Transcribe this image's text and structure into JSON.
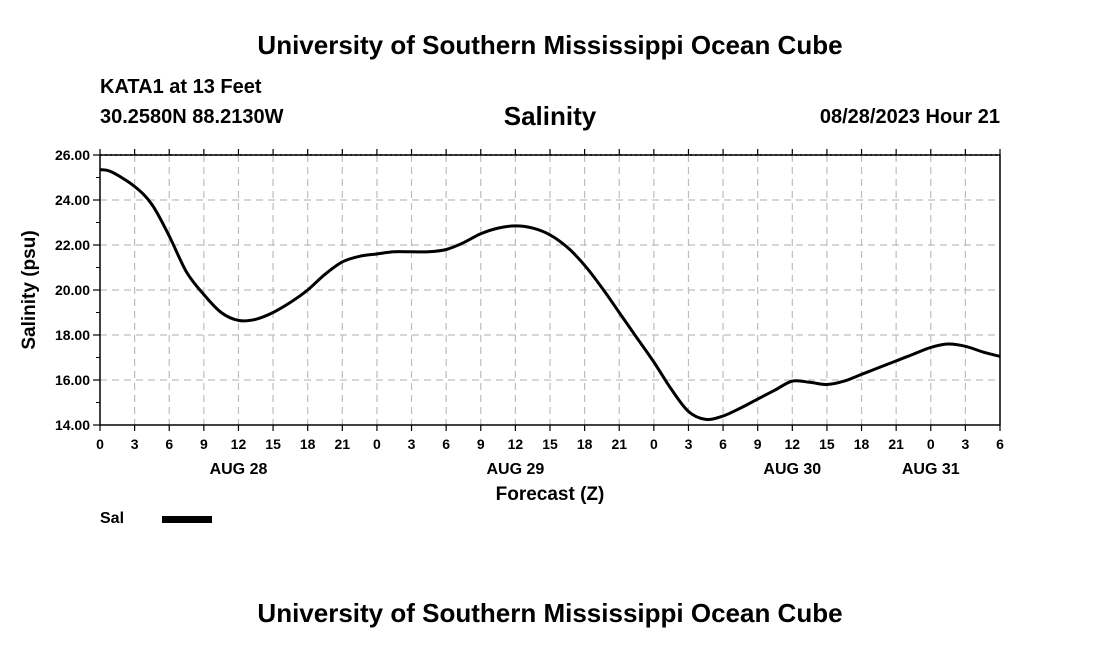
{
  "header": {
    "title": "University of Southern Mississippi Ocean Cube",
    "station": "KATA1 at 13 Feet",
    "coords": "30.2580N  88.2130W",
    "plot_title": "Salinity",
    "datetime": "08/28/2023 Hour 21"
  },
  "footer": {
    "title": "University of Southern Mississippi Ocean Cube"
  },
  "legend": {
    "label": "Sal",
    "color": "#000000"
  },
  "chart_data": {
    "type": "line",
    "xlabel": "Forecast (Z)",
    "ylabel": "Salinity (psu)",
    "ylim": [
      14,
      26
    ],
    "yticks": [
      "14.00",
      "16.00",
      "18.00",
      "20.00",
      "22.00",
      "24.00",
      "26.00"
    ],
    "xlim": [
      0,
      78
    ],
    "x_tick_step_hours": 3,
    "x_tick_labels": [
      "0",
      "3",
      "6",
      "9",
      "12",
      "15",
      "18",
      "21",
      "0",
      "3",
      "6",
      "9",
      "12",
      "15",
      "18",
      "21",
      "0",
      "3",
      "6",
      "9",
      "12",
      "15",
      "18",
      "21",
      "0",
      "3",
      "6"
    ],
    "day_labels": [
      {
        "label": "AUG 28",
        "hour": 12
      },
      {
        "label": "AUG 29",
        "hour": 36
      },
      {
        "label": "AUG 30",
        "hour": 60
      },
      {
        "label": "AUG 31",
        "hour": 72
      }
    ],
    "grid": true,
    "series": [
      {
        "name": "Sal",
        "x": [
          0,
          1,
          3,
          4.5,
          6,
          7.5,
          9,
          10.5,
          12,
          13.5,
          15,
          16.5,
          18,
          19.5,
          21,
          22.5,
          24,
          25.5,
          27,
          28.5,
          30,
          31.5,
          33,
          34.5,
          36,
          37.5,
          39,
          40.5,
          42,
          43.5,
          45,
          46.5,
          48,
          49.5,
          51,
          52.5,
          54,
          55.5,
          57,
          58.5,
          60,
          61.5,
          63,
          64.5,
          66,
          67.5,
          69,
          70.5,
          72,
          73.5,
          75,
          76.5,
          78
        ],
        "y": [
          25.35,
          25.25,
          24.6,
          23.8,
          22.4,
          20.8,
          19.8,
          19.0,
          18.65,
          18.7,
          19.0,
          19.45,
          20.0,
          20.7,
          21.25,
          21.5,
          21.6,
          21.7,
          21.7,
          21.7,
          21.8,
          22.1,
          22.5,
          22.75,
          22.85,
          22.75,
          22.45,
          21.9,
          21.1,
          20.1,
          19.0,
          17.9,
          16.8,
          15.6,
          14.6,
          14.25,
          14.4,
          14.75,
          15.15,
          15.55,
          15.95,
          15.9,
          15.8,
          15.95,
          16.25,
          16.55,
          16.85,
          17.15,
          17.45,
          17.6,
          17.5,
          17.25,
          17.05
        ]
      }
    ]
  }
}
